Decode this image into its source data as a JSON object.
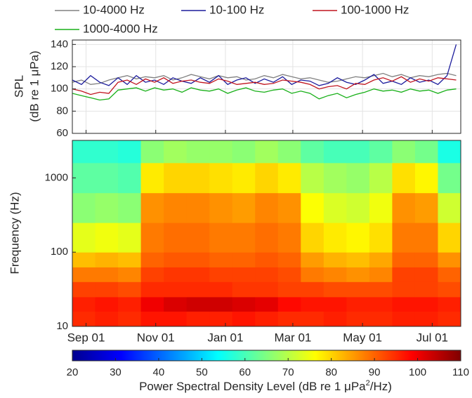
{
  "chart_data": [
    {
      "type": "line",
      "ylabel": [
        "SPL",
        "(dB re 1 μPa)"
      ],
      "legend": "top",
      "grid": true,
      "x": [
        -12,
        -4,
        4,
        12,
        20,
        28,
        36,
        44,
        52,
        60,
        68,
        76,
        84,
        92,
        100,
        108,
        116,
        124,
        132,
        140,
        148,
        156,
        164,
        172,
        180,
        188,
        196,
        204,
        212,
        220,
        228,
        236,
        244,
        252,
        260,
        268,
        276,
        284,
        292,
        300,
        308,
        316,
        324
      ],
      "xlim": [
        -12,
        328
      ],
      "xticks": [
        0,
        61,
        122,
        181,
        242,
        303
      ],
      "ylim": [
        60,
        144
      ],
      "yticks": [
        60,
        80,
        100,
        120,
        140
      ],
      "series": [
        {
          "name": "10-4000 Hz",
          "color": "#808080",
          "values": [
            106,
            108,
            104,
            105,
            108,
            110,
            112,
            109,
            111,
            110,
            112,
            108,
            110,
            113,
            111,
            109,
            112,
            110,
            111,
            108,
            109,
            112,
            110,
            113,
            111,
            109,
            110,
            108,
            106,
            107,
            109,
            111,
            110,
            112,
            114,
            111,
            113,
            110,
            112,
            111,
            113,
            114,
            112
          ]
        },
        {
          "name": "10-100 Hz",
          "color": "#1c1c9c",
          "values": [
            108,
            104,
            112,
            106,
            103,
            110,
            104,
            112,
            106,
            108,
            104,
            110,
            107,
            105,
            110,
            106,
            112,
            104,
            108,
            110,
            105,
            109,
            106,
            111,
            104,
            108,
            107,
            103,
            105,
            110,
            106,
            104,
            108,
            113,
            105,
            107,
            104,
            110,
            106,
            108,
            104,
            112,
            140
          ]
        },
        {
          "name": "100-1000 Hz",
          "color": "#c0141e",
          "values": [
            100,
            98,
            95,
            97,
            96,
            106,
            108,
            104,
            109,
            106,
            110,
            105,
            107,
            108,
            106,
            105,
            109,
            107,
            104,
            105,
            106,
            104,
            105,
            108,
            107,
            106,
            104,
            100,
            102,
            103,
            100,
            105,
            104,
            108,
            110,
            107,
            111,
            106,
            109,
            107,
            110,
            109,
            108
          ]
        },
        {
          "name": "1000-4000 Hz",
          "color": "#18b018",
          "values": [
            96,
            94,
            92,
            90,
            91,
            99,
            100,
            101,
            98,
            101,
            99,
            100,
            97,
            101,
            99,
            98,
            100,
            96,
            99,
            101,
            98,
            97,
            99,
            100,
            96,
            98,
            96,
            91,
            94,
            96,
            92,
            95,
            97,
            100,
            98,
            99,
            97,
            100,
            98,
            99,
            96,
            99,
            100
          ]
        }
      ]
    },
    {
      "type": "heatmap",
      "ylabel": "Frequency (Hz)",
      "yscale": "log",
      "xlim": [
        -12,
        328
      ],
      "xticks": [
        {
          "value": 0,
          "label": "Sep 01"
        },
        {
          "value": 61,
          "label": "Nov 01"
        },
        {
          "value": 122,
          "label": "Jan 01"
        },
        {
          "value": 181,
          "label": "Mar 01"
        },
        {
          "value": 242,
          "label": "May 01"
        },
        {
          "value": 303,
          "label": "Jul 01"
        }
      ],
      "ylim": [
        10,
        3200
      ],
      "yticks": [
        10,
        100,
        1000
      ],
      "x_edges": [
        -12,
        8,
        28,
        48,
        68,
        88,
        108,
        128,
        148,
        168,
        188,
        208,
        228,
        248,
        268,
        288,
        308,
        328
      ],
      "y_edges": [
        10,
        16,
        25,
        40,
        63,
        100,
        250,
        630,
        1600,
        3200
      ],
      "values": [
        [
          95,
          96,
          95,
          97,
          97,
          96,
          96,
          97,
          96,
          95,
          95,
          96,
          95,
          95,
          96,
          96,
          95
        ],
        [
          96,
          97,
          96,
          100,
          102,
          103,
          103,
          102,
          101,
          98,
          97,
          97,
          96,
          96,
          97,
          97,
          96
        ],
        [
          93,
          93,
          92,
          95,
          95,
          95,
          95,
          94,
          94,
          93,
          93,
          92,
          92,
          92,
          93,
          93,
          92
        ],
        [
          88,
          88,
          87,
          93,
          94,
          94,
          93,
          93,
          93,
          92,
          88,
          87,
          86,
          87,
          93,
          93,
          90
        ],
        [
          82,
          83,
          82,
          90,
          91,
          91,
          90,
          90,
          91,
          90,
          85,
          83,
          82,
          84,
          90,
          90,
          86
        ],
        [
          74,
          75,
          74,
          88,
          89,
          89,
          88,
          88,
          89,
          88,
          80,
          78,
          77,
          79,
          88,
          88,
          80
        ],
        [
          66,
          67,
          66,
          86,
          87,
          87,
          86,
          85,
          87,
          86,
          76,
          73,
          72,
          75,
          86,
          85,
          72
        ],
        [
          62,
          62,
          61,
          78,
          80,
          80,
          79,
          78,
          80,
          78,
          70,
          68,
          67,
          70,
          79,
          77,
          64
        ],
        [
          58,
          58,
          57,
          66,
          68,
          67,
          67,
          66,
          68,
          66,
          62,
          60,
          60,
          62,
          66,
          64,
          56
        ]
      ],
      "colormap": "jet",
      "clim": [
        20,
        110
      ],
      "colorbar_ticks": [
        20,
        30,
        40,
        50,
        60,
        70,
        80,
        90,
        100,
        110
      ],
      "colorbar_label": [
        "Power Spectral Density Level (dB re 1 μPa",
        "2",
        "/Hz)"
      ]
    }
  ]
}
